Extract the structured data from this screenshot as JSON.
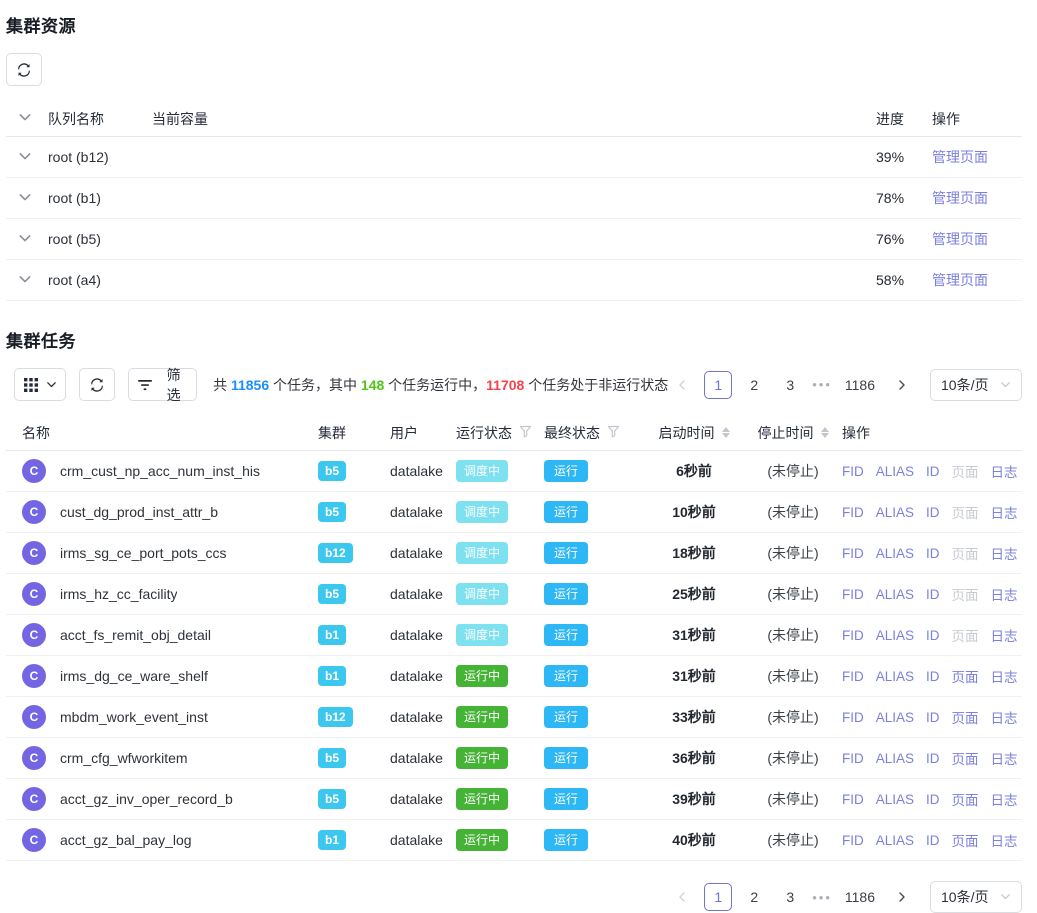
{
  "colors": {
    "accent_purple": "#6e74cf",
    "link_purple": "#7b80dd",
    "progress_blue": "#1677ff",
    "badge_scheduling": "#7de1f0",
    "badge_running": "#45b335",
    "badge_final": "#2db7f5",
    "cluster_badge": "#3cc7ee",
    "avatar_purple": "#7466e3",
    "total_blue": "#1890ff",
    "running_green": "#52c41a",
    "stopped_red": "#f5434a"
  },
  "resources": {
    "title": "集群资源",
    "table": {
      "headers": {
        "queue": "队列名称",
        "capacity": "当前容量",
        "progress": "进度",
        "action": "操作"
      },
      "rows": [
        {
          "queue": "root (b12)",
          "percent": 39,
          "percent_label": "39%",
          "action": "管理页面"
        },
        {
          "queue": "root (b1)",
          "percent": 78,
          "percent_label": "78%",
          "action": "管理页面"
        },
        {
          "queue": "root (b5)",
          "percent": 76,
          "percent_label": "76%",
          "action": "管理页面"
        },
        {
          "queue": "root (a4)",
          "percent": 58,
          "percent_label": "58%",
          "action": "管理页面"
        }
      ]
    }
  },
  "tasks": {
    "title": "集群任务",
    "toolbar": {
      "filter_label": "筛选",
      "summary": {
        "prefix": "共 ",
        "total": "11856",
        "seg1": " 个任务，其中 ",
        "running": "148",
        "seg2": " 个任务运行中，",
        "not_running": "11708",
        "suffix": " 个任务处于非运行状态"
      }
    },
    "pagination": {
      "current": "1",
      "page2": "2",
      "page3": "3",
      "ellipsis": "•••",
      "last": "1186",
      "page_size": "10条/页"
    },
    "table": {
      "avatar_letter": "C",
      "headers": {
        "name": "名称",
        "cluster": "集群",
        "user": "用户",
        "run_status": "运行状态",
        "final_status": "最终状态",
        "start_time": "启动时间",
        "stop_time": "停止时间",
        "action": "操作"
      },
      "actions": [
        {
          "label": "FID",
          "name": "fid-link"
        },
        {
          "label": "ALIAS",
          "name": "alias-link"
        },
        {
          "label": "ID",
          "name": "id-link"
        },
        {
          "label": "页面",
          "name": "page-link"
        },
        {
          "label": "日志",
          "name": "log-link"
        }
      ],
      "rows": [
        {
          "name": "crm_cust_np_acc_num_inst_his",
          "cluster": "b5",
          "user": "datalake",
          "run_status": "调度中",
          "run_status_type": "scheduling",
          "final_status": "运行",
          "start": "6秒前",
          "stop": "(未停止)",
          "page_enabled": false
        },
        {
          "name": "cust_dg_prod_inst_attr_b",
          "cluster": "b5",
          "user": "datalake",
          "run_status": "调度中",
          "run_status_type": "scheduling",
          "final_status": "运行",
          "start": "10秒前",
          "stop": "(未停止)",
          "page_enabled": false
        },
        {
          "name": "irms_sg_ce_port_pots_ccs",
          "cluster": "b12",
          "user": "datalake",
          "run_status": "调度中",
          "run_status_type": "scheduling",
          "final_status": "运行",
          "start": "18秒前",
          "stop": "(未停止)",
          "page_enabled": false
        },
        {
          "name": "irms_hz_cc_facility",
          "cluster": "b5",
          "user": "datalake",
          "run_status": "调度中",
          "run_status_type": "scheduling",
          "final_status": "运行",
          "start": "25秒前",
          "stop": "(未停止)",
          "page_enabled": false
        },
        {
          "name": "acct_fs_remit_obj_detail",
          "cluster": "b1",
          "user": "datalake",
          "run_status": "调度中",
          "run_status_type": "scheduling",
          "final_status": "运行",
          "start": "31秒前",
          "stop": "(未停止)",
          "page_enabled": false
        },
        {
          "name": "irms_dg_ce_ware_shelf",
          "cluster": "b1",
          "user": "datalake",
          "run_status": "运行中",
          "run_status_type": "running",
          "final_status": "运行",
          "start": "31秒前",
          "stop": "(未停止)",
          "page_enabled": true
        },
        {
          "name": "mbdm_work_event_inst",
          "cluster": "b12",
          "user": "datalake",
          "run_status": "运行中",
          "run_status_type": "running",
          "final_status": "运行",
          "start": "33秒前",
          "stop": "(未停止)",
          "page_enabled": true
        },
        {
          "name": "crm_cfg_wfworkitem",
          "cluster": "b5",
          "user": "datalake",
          "run_status": "运行中",
          "run_status_type": "running",
          "final_status": "运行",
          "start": "36秒前",
          "stop": "(未停止)",
          "page_enabled": true
        },
        {
          "name": "acct_gz_inv_oper_record_b",
          "cluster": "b5",
          "user": "datalake",
          "run_status": "运行中",
          "run_status_type": "running",
          "final_status": "运行",
          "start": "39秒前",
          "stop": "(未停止)",
          "page_enabled": true
        },
        {
          "name": "acct_gz_bal_pay_log",
          "cluster": "b1",
          "user": "datalake",
          "run_status": "运行中",
          "run_status_type": "running",
          "final_status": "运行",
          "start": "40秒前",
          "stop": "(未停止)",
          "page_enabled": true
        }
      ]
    }
  }
}
